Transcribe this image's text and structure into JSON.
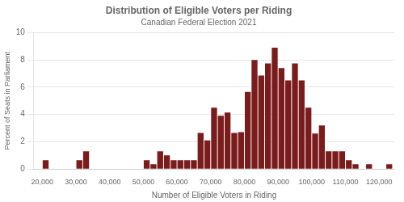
{
  "chart_data": {
    "type": "histogram",
    "title": "Distribution of Eligible Voters per Riding",
    "subtitle": "Canadian Federal Election 2021",
    "x_label": "Number of Eligible Voters in Riding",
    "y_label": "Percent of Seats in Parliament",
    "color": "#7B1C1C",
    "bins": [
      20000,
      22000,
      24000,
      26000,
      28000,
      30000,
      32000,
      34000,
      36000,
      38000,
      40000,
      42000,
      44000,
      46000,
      48000,
      50000,
      52000,
      54000,
      56000,
      58000,
      60000,
      62000,
      64000,
      66000,
      68000,
      70000,
      72000,
      74000,
      76000,
      78000,
      80000,
      82000,
      84000,
      86000,
      88000,
      90000,
      92000,
      94000,
      96000,
      98000,
      100000,
      102000,
      104000,
      106000,
      108000,
      110000,
      112000,
      114000,
      116000,
      118000,
      120000,
      122000,
      124000
    ],
    "values": [
      0.65,
      0.0,
      0.0,
      0.0,
      0.0,
      0.65,
      1.3,
      0.0,
      0.0,
      0.0,
      0.0,
      0.0,
      0.0,
      0.0,
      0.0,
      0.65,
      0.35,
      1.3,
      1.0,
      0.65,
      0.65,
      0.65,
      0.65,
      2.65,
      2.1,
      4.5,
      3.9,
      4.15,
      2.65,
      2.7,
      5.65,
      8.0,
      6.85,
      7.75,
      8.9,
      7.4,
      6.5,
      7.75,
      6.5,
      4.5,
      2.6,
      3.2,
      1.3,
      1.3,
      1.3,
      0.65,
      0.35,
      0.0,
      0.35,
      0.0,
      0.0,
      0.35
    ],
    "xlim": [
      17500,
      124500
    ],
    "xticks": [
      {
        "value": 20000,
        "label": "20,000"
      },
      {
        "value": 30000,
        "label": "30,000"
      },
      {
        "value": 40000,
        "label": "40,000"
      },
      {
        "value": 50000,
        "label": "50,000"
      },
      {
        "value": 60000,
        "label": "60,000"
      },
      {
        "value": 70000,
        "label": "70,000"
      },
      {
        "value": 80000,
        "label": "80,000"
      },
      {
        "value": 90000,
        "label": "90,000"
      },
      {
        "value": 100000,
        "label": "100,000"
      },
      {
        "value": 110000,
        "label": "110,000"
      },
      {
        "value": 120000,
        "label": "120,000"
      }
    ],
    "ylim": [
      0,
      10
    ],
    "yticks": [
      0,
      2,
      4,
      6,
      8,
      10
    ],
    "grid": "y"
  }
}
